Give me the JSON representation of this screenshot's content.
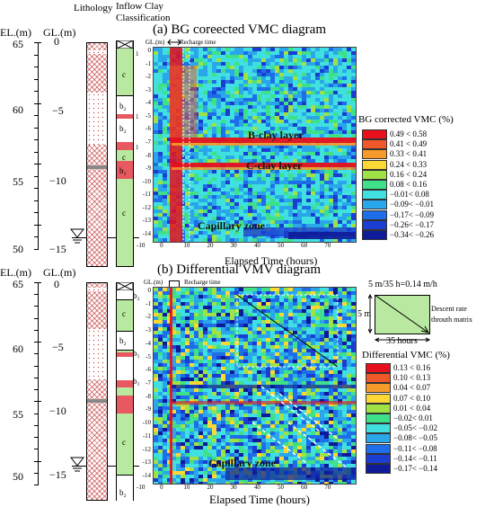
{
  "headers": {
    "lithology": "Lithology",
    "inflow": "Inflow Clay",
    "classification": "Classification",
    "el": "EL.(m)",
    "gl": "GL.(m)"
  },
  "panel_a": {
    "title": "(a) BG coreected VMC diagram",
    "el_ticks": [
      "65",
      "60",
      "55",
      "50"
    ],
    "gl_ticks": [
      "0",
      "5",
      "10",
      "15"
    ],
    "gl_tick_prefixes": [
      "",
      "−",
      "−",
      "−"
    ],
    "clay_labels": [
      "c",
      "b₂",
      "b₂",
      "c",
      "b₁",
      "c"
    ],
    "clay_numbers": [
      "1",
      "1",
      "1"
    ],
    "plot_gl_label": "GL.(m)",
    "recharge_label": "Recharge time",
    "y_ticks": [
      "0",
      "-1",
      "-2",
      "-3",
      "-4",
      "-5",
      "-6",
      "-7",
      "-8",
      "-9",
      "-10",
      "-11",
      "-12",
      "-13",
      "-14"
    ],
    "x_ticks": [
      "-10",
      "0",
      "10",
      "20",
      "30",
      "40",
      "50",
      "60",
      "70"
    ],
    "xlabel": "Elapsed Time (hours)",
    "annotations": [
      "B-clay layer",
      "C-clay layer",
      "Capillary zone"
    ],
    "legend_title": "BG corrected VMC (%)",
    "legend": [
      {
        "label": "0.49 < 0.58",
        "color": "#e8101c"
      },
      {
        "label": "0.41 < 0.49",
        "color": "#f0582a"
      },
      {
        "label": "0.33 < 0.41",
        "color": "#f79a2c"
      },
      {
        "label": "0.24 < 0.33",
        "color": "#fbd834"
      },
      {
        "label": "0.16 < 0.24",
        "color": "#9ee246"
      },
      {
        "label": "0.08 < 0.16",
        "color": "#3ee08a"
      },
      {
        "label": "−0.01< 0.08",
        "color": "#40e0e0"
      },
      {
        "label": "−0.09< −0.01",
        "color": "#2aa6ea"
      },
      {
        "label": "−0.17< −0.09",
        "color": "#1d6ee8"
      },
      {
        "label": "−0.26< −0.17",
        "color": "#1a3ed0"
      },
      {
        "label": "−0.34< −0.26",
        "color": "#0e1a98"
      }
    ]
  },
  "panel_b": {
    "title": "(b) Differential VMV diagram",
    "el_ticks": [
      "65",
      "60",
      "55",
      "50"
    ],
    "gl_ticks": [
      "0",
      "5",
      "10",
      "15"
    ],
    "gl_tick_prefixes": [
      "",
      "−",
      "−",
      "−"
    ],
    "clay_labels": [
      "b₂",
      "c",
      "b₂",
      "b₁",
      "b₁",
      "c",
      "b₂"
    ],
    "plot_gl_label": "GL.(m)",
    "recharge_label": "Recharge time",
    "y_ticks": [
      "0",
      "-1",
      "-2",
      "-3",
      "-4",
      "-5",
      "-6",
      "-7",
      "-8",
      "-9",
      "-10",
      "-11",
      "-12",
      "-13",
      "-14"
    ],
    "x_ticks": [
      "-10",
      "0",
      "10",
      "20",
      "30",
      "40",
      "50",
      "60",
      "70"
    ],
    "xlabel": "Elapsed Time (hours)",
    "annotations": [
      "Capillary zone"
    ],
    "rate_label_top": "5 m/35 h=0.14 m/h",
    "rate_5m": "5 m",
    "rate_35h": "35 hours",
    "rate_desc1": "Descent rate",
    "rate_desc2": "throuth matrix",
    "legend_title": "Differential VMC (%)",
    "legend": [
      {
        "label": "0.13 < 0.16",
        "color": "#e8101c"
      },
      {
        "label": "0.10 < 0.13",
        "color": "#f0582a"
      },
      {
        "label": "0.04 < 0.07",
        "color": "#f79a2c"
      },
      {
        "label": "0.07 < 0.10",
        "color": "#fbd834"
      },
      {
        "label": "0.01 < 0.04",
        "color": "#9ee246"
      },
      {
        "label": "−0.02< 0.01",
        "color": "#3ee08a"
      },
      {
        "label": "−0.05< −0.02",
        "color": "#40e0e0"
      },
      {
        "label": "−0.08< −0.05",
        "color": "#2aa6ea"
      },
      {
        "label": "−0.11< −0.08",
        "color": "#1d6ee8"
      },
      {
        "label": "−0.14< −0.11",
        "color": "#1a3ed0"
      },
      {
        "label": "−0.17< −0.14",
        "color": "#0e1a98"
      }
    ]
  }
}
